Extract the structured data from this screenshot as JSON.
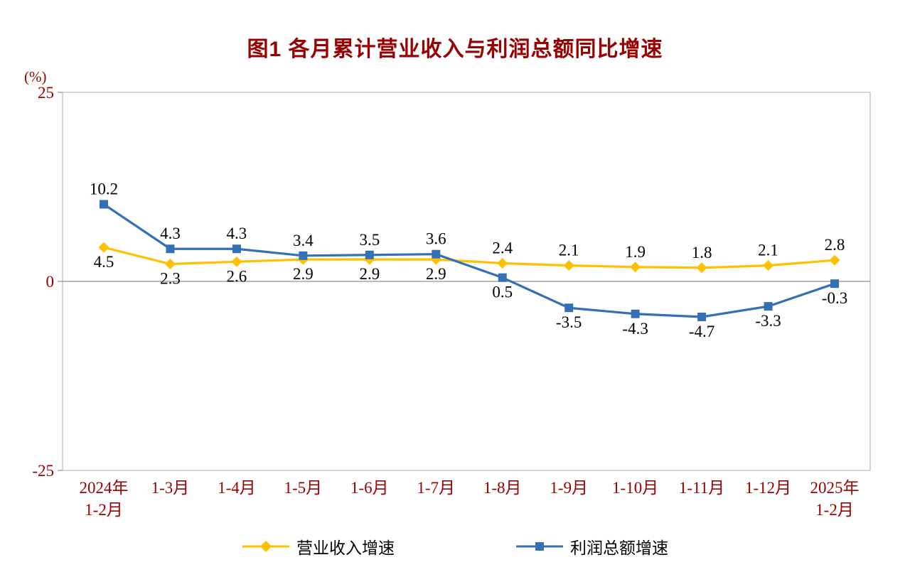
{
  "chart_data": {
    "type": "line",
    "title": "图1  各月累计营业收入与利润总额同比增速",
    "ylabel": "(%)",
    "xlabel": "",
    "ylim": [
      -25,
      25
    ],
    "yticks": [
      25,
      0,
      -25
    ],
    "grid": "zero-line-only",
    "legend_position": "bottom-center",
    "categories": [
      "2024年\n1-2月",
      "1-3月",
      "1-4月",
      "1-5月",
      "1-6月",
      "1-7月",
      "1-8月",
      "1-9月",
      "1-10月",
      "1-11月",
      "1-12月",
      "2025年\n1-2月"
    ],
    "series": [
      {
        "name": "营业收入增速",
        "color": "#FFC000",
        "marker": "diamond",
        "values": [
          4.5,
          2.3,
          2.6,
          2.9,
          2.9,
          2.9,
          2.4,
          2.1,
          1.9,
          1.8,
          2.1,
          2.8
        ],
        "label_position": [
          "below",
          "below",
          "below",
          "below",
          "below",
          "below",
          "above",
          "above",
          "above",
          "above",
          "above",
          "above"
        ]
      },
      {
        "name": "利润总额增速",
        "color": "#3470B4",
        "marker": "square",
        "values": [
          10.2,
          4.3,
          4.3,
          3.4,
          3.5,
          3.6,
          0.5,
          -3.5,
          -4.3,
          -4.7,
          -3.3,
          -0.3
        ],
        "label_position": [
          "above",
          "above",
          "above",
          "above",
          "above",
          "above",
          "below",
          "below",
          "below",
          "below",
          "below",
          "below"
        ]
      }
    ],
    "colors": {
      "title": "#990000",
      "axis_label": "#990000",
      "data_label": "#000000",
      "plot_border": "#ABABAB",
      "zero_line": "#8F8F8F",
      "axis_line": "#8F8F8F",
      "background": "#FFFFFF"
    }
  }
}
